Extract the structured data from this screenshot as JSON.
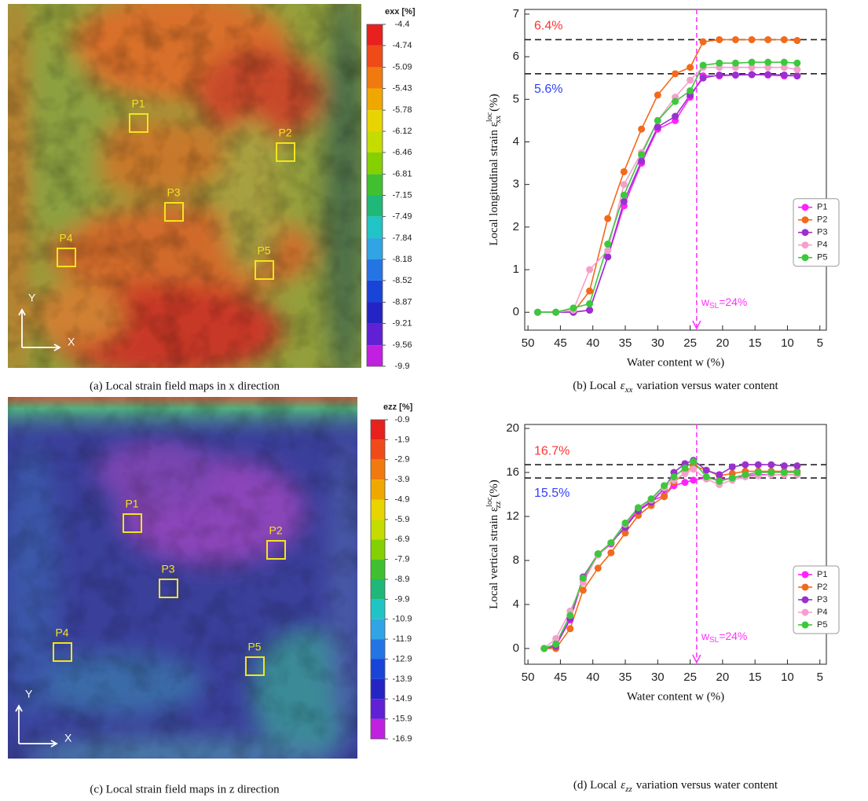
{
  "chart_data": [
    {
      "type": "strain-map",
      "colorbar_title": "exx [%]",
      "clim": [
        -9.9,
        -4.4
      ],
      "cticks": [
        -4.4,
        -4.74,
        -5.09,
        -5.43,
        -5.78,
        -6.12,
        -6.46,
        -6.81,
        -7.15,
        -7.49,
        -7.84,
        -8.18,
        -8.52,
        -8.87,
        -9.21,
        -9.56,
        -9.9
      ],
      "colormap": [
        "#e8201e",
        "#f04a18",
        "#f07a10",
        "#f0a800",
        "#e8d400",
        "#c4dc00",
        "#84d000",
        "#40c030",
        "#20b878",
        "#20c4c4",
        "#30a4e4",
        "#2474e4",
        "#1844d8",
        "#2424c4",
        "#6020d4",
        "#c020e0"
      ],
      "regions": [
        "P1",
        "P2",
        "P3",
        "P4",
        "P5"
      ],
      "axis_labels": [
        "Y",
        "X"
      ],
      "caption": "(a) Local strain field maps in x direction"
    },
    {
      "type": "line",
      "ylabel": {
        "text": "Local longitudinal strain ε",
        "sup": "loc",
        "sub": "xx",
        "unit": "(%)"
      },
      "xlabel": "Water content w (%)",
      "x": [
        48.5,
        45.7,
        43,
        40.5,
        37.7,
        35.2,
        32.5,
        30,
        27.3,
        25,
        23,
        20.5,
        18,
        15.5,
        13,
        10.5,
        8.5
      ],
      "series": [
        {
          "name": "P1",
          "color": "#ff22ff",
          "values": [
            0,
            0,
            0,
            0.05,
            1.3,
            2.5,
            3.5,
            4.3,
            4.5,
            5.05,
            5.55,
            5.55,
            5.57,
            5.58,
            5.57,
            5.55,
            5.55
          ]
        },
        {
          "name": "P2",
          "color": "#f26a1b",
          "values": [
            0,
            0,
            0,
            0.5,
            2.2,
            3.3,
            4.3,
            5.1,
            5.6,
            5.75,
            6.35,
            6.4,
            6.4,
            6.4,
            6.4,
            6.4,
            6.38
          ]
        },
        {
          "name": "P3",
          "color": "#9b30d0",
          "values": [
            0,
            0,
            0,
            0.05,
            1.3,
            2.6,
            3.55,
            4.35,
            4.6,
            5.1,
            5.5,
            5.57,
            5.57,
            5.58,
            5.58,
            5.57,
            5.55
          ]
        },
        {
          "name": "P4",
          "color": "#f5a0cc",
          "values": [
            0,
            0,
            0.05,
            1.0,
            1.45,
            3.0,
            3.75,
            4.5,
            5.05,
            5.45,
            5.75,
            5.75,
            5.75,
            5.75,
            5.75,
            5.75,
            5.7
          ]
        },
        {
          "name": "P5",
          "color": "#3cc83c",
          "values": [
            0,
            0,
            0.1,
            0.2,
            1.6,
            2.75,
            3.7,
            4.5,
            4.95,
            5.2,
            5.8,
            5.85,
            5.85,
            5.87,
            5.87,
            5.87,
            5.85
          ]
        }
      ],
      "xlim": [
        50.5,
        4
      ],
      "ylim": [
        -0.42,
        7.11
      ],
      "xticks": [
        50,
        45,
        40,
        35,
        30,
        25,
        20,
        15,
        10,
        5
      ],
      "yticks": [
        0,
        1,
        2,
        3,
        4,
        5,
        6,
        7
      ],
      "legend": "right",
      "reference_lines": [
        {
          "value": 6.4,
          "label": "6.4%",
          "color": "#ff3333"
        },
        {
          "value": 5.6,
          "label": "5.6%",
          "color": "#3340ff"
        }
      ],
      "vline": {
        "value": 24,
        "label": "w",
        "label_sub": "SL",
        "label_rest": "=24%",
        "color": "#ff33ff"
      },
      "caption": {
        "pre": "(b) Local",
        "symbol": "ε",
        "sub": "xx",
        "post": "variation versus water content"
      }
    },
    {
      "type": "strain-map",
      "colorbar_title": "ezz [%]",
      "clim": [
        -16.9,
        -0.9
      ],
      "cticks": [
        -0.9,
        -1.9,
        -2.9,
        -3.9,
        -4.9,
        -5.9,
        -6.9,
        -7.9,
        -8.9,
        -9.9,
        -10.9,
        -11.9,
        -12.9,
        -13.9,
        -14.9,
        -15.9,
        -16.9
      ],
      "colormap": [
        "#e8201e",
        "#f04a18",
        "#f07a10",
        "#f0a800",
        "#e8d400",
        "#c4dc00",
        "#84d000",
        "#40c030",
        "#20b878",
        "#20c4c4",
        "#30a4e4",
        "#2474e4",
        "#1844d8",
        "#2424c4",
        "#6020d4",
        "#c020e0"
      ],
      "regions": [
        "P1",
        "P2",
        "P3",
        "P4",
        "P5"
      ],
      "axis_labels": [
        "Y",
        "X"
      ],
      "caption": "(c) Local strain field maps in z direction"
    },
    {
      "type": "line",
      "ylabel": {
        "text": "Local vertical strain ε",
        "sup": "loc",
        "sub": "zz",
        "unit": "(%)"
      },
      "xlabel": "Water content w (%)",
      "x": [
        47.5,
        45.7,
        43.5,
        41.5,
        39.2,
        37.2,
        35,
        33,
        31,
        29,
        27.5,
        25.8,
        24.5,
        22.5,
        20.5,
        18.5,
        16.5,
        14.5,
        12.5,
        10.5,
        8.5
      ],
      "series": [
        {
          "name": "P1",
          "color": "#ff22ff",
          "values": [
            0,
            0.3,
            2.6,
            6.3,
            8.5,
            9.5,
            11.2,
            12.6,
            13.4,
            13.9,
            14.8,
            15.1,
            15.3,
            15.5,
            15.3,
            15.5,
            15.7,
            15.8,
            15.8,
            15.8,
            15.8
          ]
        },
        {
          "name": "P2",
          "color": "#f26a1b",
          "values": [
            0,
            0,
            1.8,
            5.3,
            7.3,
            8.7,
            10.5,
            12.1,
            13.0,
            13.8,
            15.1,
            16.0,
            16.6,
            16.2,
            15.7,
            15.9,
            16.1,
            16.1,
            16.1,
            16.1,
            16.1
          ]
        },
        {
          "name": "P3",
          "color": "#9b30d0",
          "values": [
            0,
            0.2,
            2.7,
            6.5,
            8.6,
            9.6,
            11.0,
            12.5,
            13.3,
            14.5,
            16.0,
            16.8,
            17.1,
            16.2,
            15.8,
            16.5,
            16.7,
            16.7,
            16.7,
            16.6,
            16.6
          ]
        },
        {
          "name": "P4",
          "color": "#f5a0cc",
          "values": [
            0,
            0.9,
            3.4,
            6.0,
            8.5,
            9.6,
            11.3,
            12.8,
            13.5,
            14.6,
            15.3,
            15.9,
            16.3,
            15.4,
            14.9,
            15.3,
            15.6,
            15.7,
            15.8,
            15.8,
            15.8
          ]
        },
        {
          "name": "P5",
          "color": "#3cc83c",
          "values": [
            0,
            0.4,
            3.0,
            6.4,
            8.6,
            9.6,
            11.4,
            12.8,
            13.6,
            14.8,
            15.6,
            16.4,
            17.0,
            15.6,
            15.2,
            15.5,
            15.8,
            16.0,
            16.0,
            16.0,
            16.0
          ]
        }
      ],
      "xlim": [
        50.5,
        4
      ],
      "ylim": [
        -1.43,
        20.36
      ],
      "xticks": [
        50,
        45,
        40,
        35,
        30,
        25,
        20,
        15,
        10,
        5
      ],
      "yticks": [
        0,
        4,
        8,
        12,
        16,
        20
      ],
      "legend": "right",
      "reference_lines": [
        {
          "value": 16.7,
          "label": "16.7%",
          "color": "#ff3333"
        },
        {
          "value": 15.5,
          "label": "15.5%",
          "color": "#3340ff"
        }
      ],
      "vline": {
        "value": 24,
        "label": "w",
        "label_sub": "SL",
        "label_rest": "=24%",
        "color": "#ff33ff"
      },
      "caption": {
        "pre": "(d) Local",
        "symbol": "ε",
        "sub": "zz",
        "post": "variation versus water content"
      }
    }
  ]
}
